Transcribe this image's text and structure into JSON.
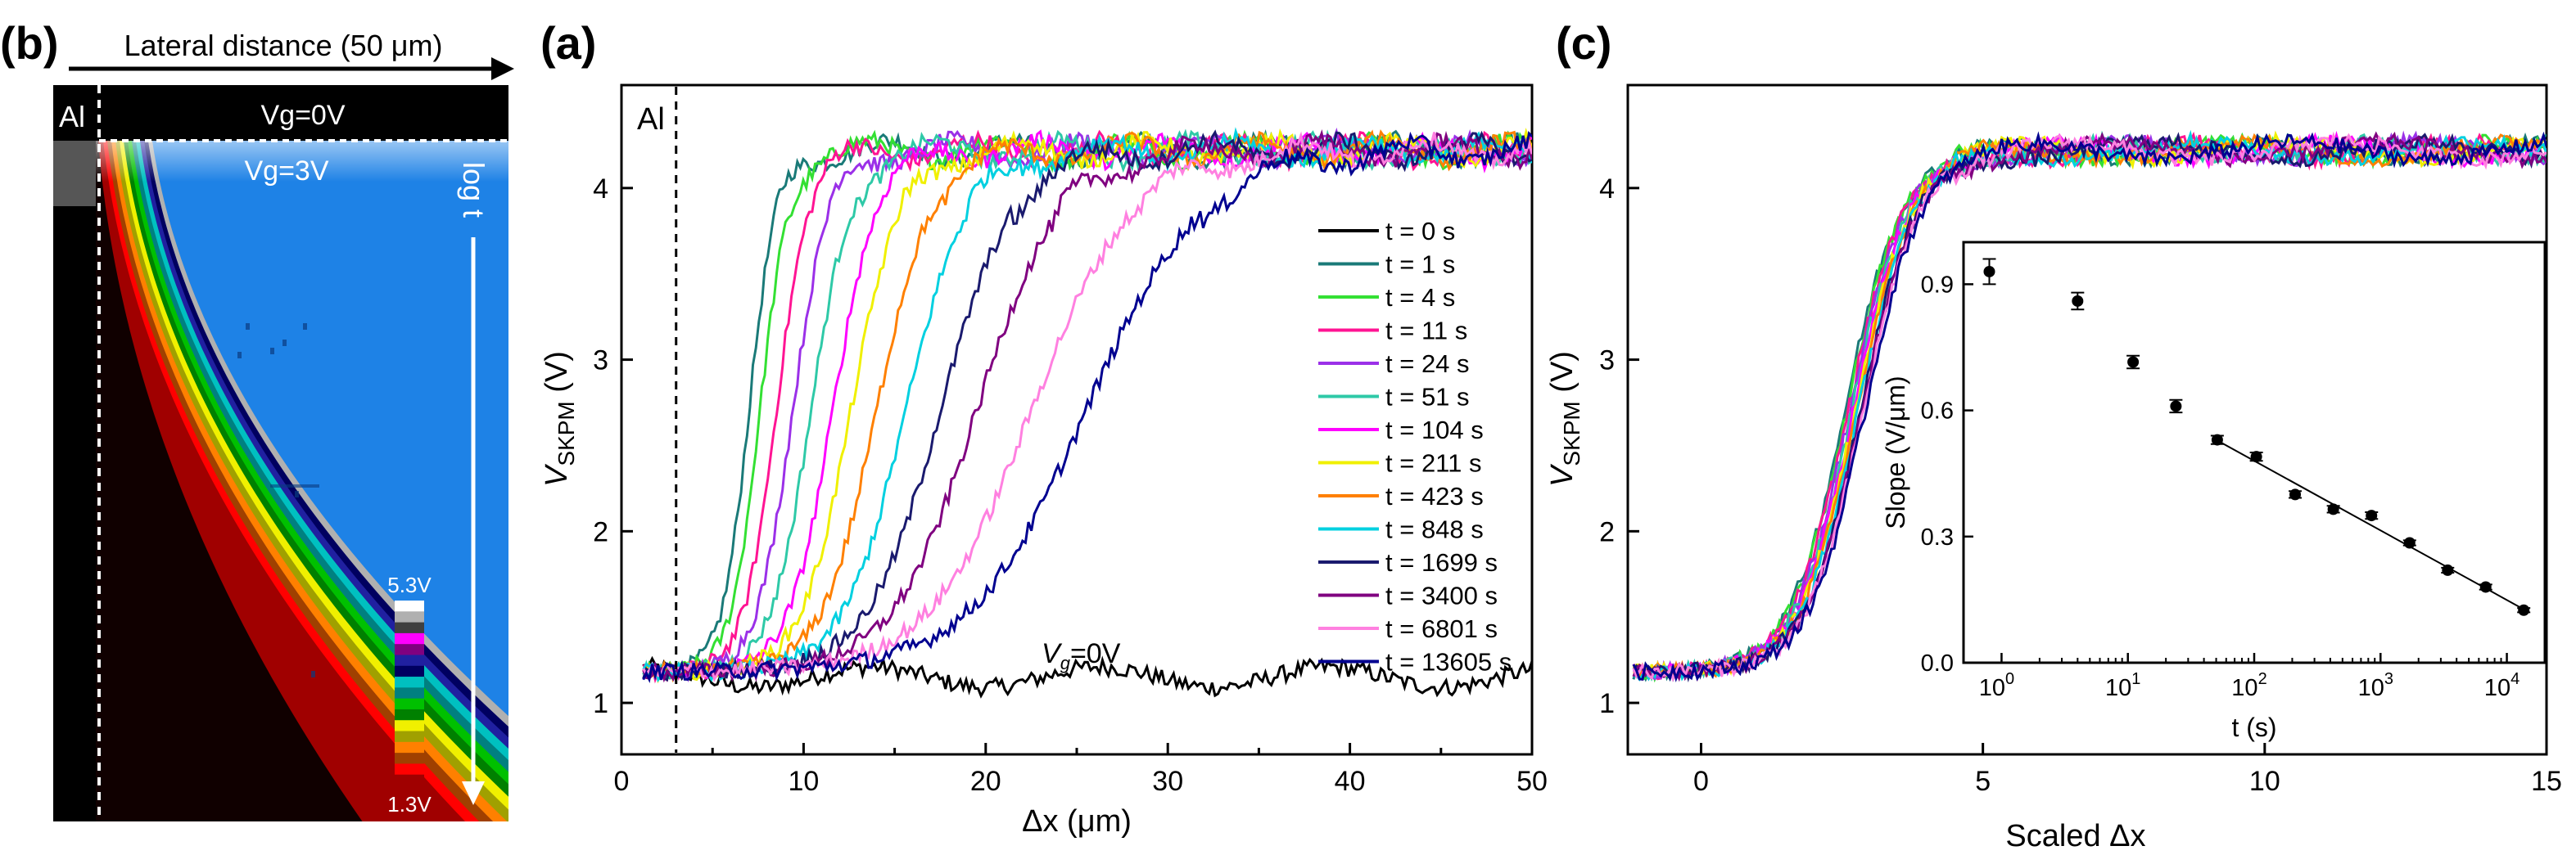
{
  "panels": {
    "b": {
      "letter": "(b)",
      "arrow_label": "Lateral distance (50 μm)",
      "al_label": "Al",
      "vg_top": "Vg=0V",
      "vg_bottom": "Vg=3V",
      "time_label": "log t",
      "colorbar_max": "5.3V",
      "colorbar_min": "1.3V"
    },
    "a": {
      "letter": "(a)",
      "al_label": "Al",
      "vg_annotation": "V",
      "vg_sub": "g",
      "vg_rest": "=0V"
    },
    "c": {
      "letter": "(c)"
    }
  },
  "chart_data": [
    {
      "id": "panel-a",
      "type": "line",
      "title": "",
      "xlabel": "Δx (μm)",
      "ylabel": "V",
      "ylabel_sub": "SKPM",
      "ylabel_unit": " (V)",
      "xlim": [
        0,
        50
      ],
      "ylim": [
        0.7,
        4.6
      ],
      "xticks": [
        0,
        10,
        20,
        30,
        40,
        50
      ],
      "yticks": [
        1,
        2,
        3,
        4
      ],
      "al_position": 3,
      "series": [
        {
          "name": "t = 0 s",
          "color": "#000000",
          "baseline": 1.15
        },
        {
          "name": "t = 1 s",
          "color": "#1a7a78",
          "x0": 7.0,
          "w": 0.75
        },
        {
          "name": "t = 4 s",
          "color": "#33e033",
          "x0": 7.6,
          "w": 0.8
        },
        {
          "name": "t = 11 s",
          "color": "#ff1493",
          "x0": 8.5,
          "w": 0.9
        },
        {
          "name": "t = 24 s",
          "color": "#9b30e8",
          "x0": 9.4,
          "w": 1.0
        },
        {
          "name": "t = 51 s",
          "color": "#2ec9a7",
          "x0": 10.4,
          "w": 1.1
        },
        {
          "name": "t = 104 s",
          "color": "#ff00ff",
          "x0": 11.6,
          "w": 1.2
        },
        {
          "name": "t = 211 s",
          "color": "#f0f000",
          "x0": 12.6,
          "w": 1.35
        },
        {
          "name": "t = 423 s",
          "color": "#ff8000",
          "x0": 14.0,
          "w": 1.5
        },
        {
          "name": "t = 848 s",
          "color": "#00d0e0",
          "x0": 15.6,
          "w": 1.7
        },
        {
          "name": "t = 1699 s",
          "color": "#1a1a6e",
          "x0": 17.5,
          "w": 2.0
        },
        {
          "name": "t = 3400 s",
          "color": "#800080",
          "x0": 19.5,
          "w": 2.3
        },
        {
          "name": "t = 6801 s",
          "color": "#ff80e0",
          "x0": 22.5,
          "w": 2.8
        },
        {
          "name": "t = 13605 s",
          "color": "#000090",
          "x0": 25.5,
          "w": 3.2
        }
      ],
      "v_low": 1.18,
      "v_high": 4.22
    },
    {
      "id": "panel-c",
      "type": "line",
      "xlabel": "Scaled Δx",
      "ylabel": "V",
      "ylabel_sub": "SKPM",
      "ylabel_unit": " (V)",
      "xlim": [
        -1.3,
        15
      ],
      "ylim": [
        0.7,
        4.6
      ],
      "xticks": [
        0,
        5,
        10,
        15
      ],
      "yticks": [
        1,
        2,
        3,
        4
      ],
      "x0": 2.7,
      "w": 0.5,
      "v_low": 1.18,
      "v_high": 4.22
    },
    {
      "id": "panel-c-inset",
      "type": "scatter",
      "xlabel": "t (s)",
      "ylabel": "Slope (V/μm)",
      "xscale": "log",
      "xlim": [
        0.5,
        20000
      ],
      "ylim": [
        0.0,
        1.0
      ],
      "yticks": [
        0.0,
        0.3,
        0.6,
        0.9
      ],
      "ytick_labels": [
        "0.0",
        "0.3",
        "0.6",
        "0.9"
      ],
      "xtick_labels": [
        {
          "base": "10",
          "exp": "0"
        },
        {
          "base": "10",
          "exp": "1"
        },
        {
          "base": "10",
          "exp": "2"
        },
        {
          "base": "10",
          "exp": "3"
        },
        {
          "base": "10",
          "exp": "4"
        }
      ],
      "points": [
        {
          "t": 0.8,
          "slope": 0.93,
          "err": 0.03
        },
        {
          "t": 4,
          "slope": 0.86,
          "err": 0.02
        },
        {
          "t": 11,
          "slope": 0.715,
          "err": 0.015
        },
        {
          "t": 24,
          "slope": 0.61,
          "err": 0.015
        },
        {
          "t": 51,
          "slope": 0.53,
          "err": 0.01
        },
        {
          "t": 104,
          "slope": 0.49,
          "err": 0.01
        },
        {
          "t": 211,
          "slope": 0.4,
          "err": 0.008
        },
        {
          "t": 423,
          "slope": 0.365,
          "err": 0.008
        },
        {
          "t": 848,
          "slope": 0.35,
          "err": 0.008
        },
        {
          "t": 1699,
          "slope": 0.285,
          "err": 0.006
        },
        {
          "t": 3400,
          "slope": 0.22,
          "err": 0.006
        },
        {
          "t": 6801,
          "slope": 0.18,
          "err": 0.006
        },
        {
          "t": 13605,
          "slope": 0.125,
          "err": 0.005
        }
      ],
      "fit": {
        "t_start": 50,
        "t_end": 15000,
        "slope_start": 0.53,
        "slope_end": 0.12
      }
    }
  ],
  "colors": {
    "map_bg": "#1e82e6",
    "colorbar": [
      "#ffffff",
      "#b0b0b0",
      "#404040",
      "#ff00ff",
      "#800080",
      "#2020a0",
      "#000060",
      "#00c0c0",
      "#008080",
      "#00c000",
      "#008000",
      "#f0f000",
      "#a0a000",
      "#ff8000",
      "#a04000",
      "#ff0000",
      "#a00000"
    ]
  }
}
